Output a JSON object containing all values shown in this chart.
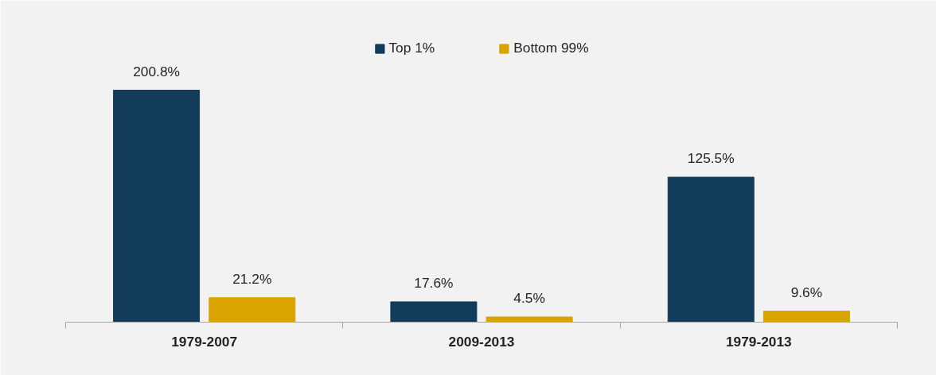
{
  "chart_data": {
    "type": "bar",
    "categories": [
      "1979-2007",
      "2009-2013",
      "1979-2013"
    ],
    "series": [
      {
        "name": "Top 1%",
        "color": "#133c5a",
        "values": [
          200.8,
          17.6,
          125.5
        ],
        "value_labels": [
          "200.8%",
          "17.6%",
          "125.5%"
        ]
      },
      {
        "name": "Bottom 99%",
        "color": "#d9a300",
        "values": [
          21.2,
          4.5,
          9.6
        ],
        "value_labels": [
          "21.2%",
          "4.5%",
          "9.6%"
        ]
      }
    ],
    "legend": "top",
    "grid": false
  }
}
